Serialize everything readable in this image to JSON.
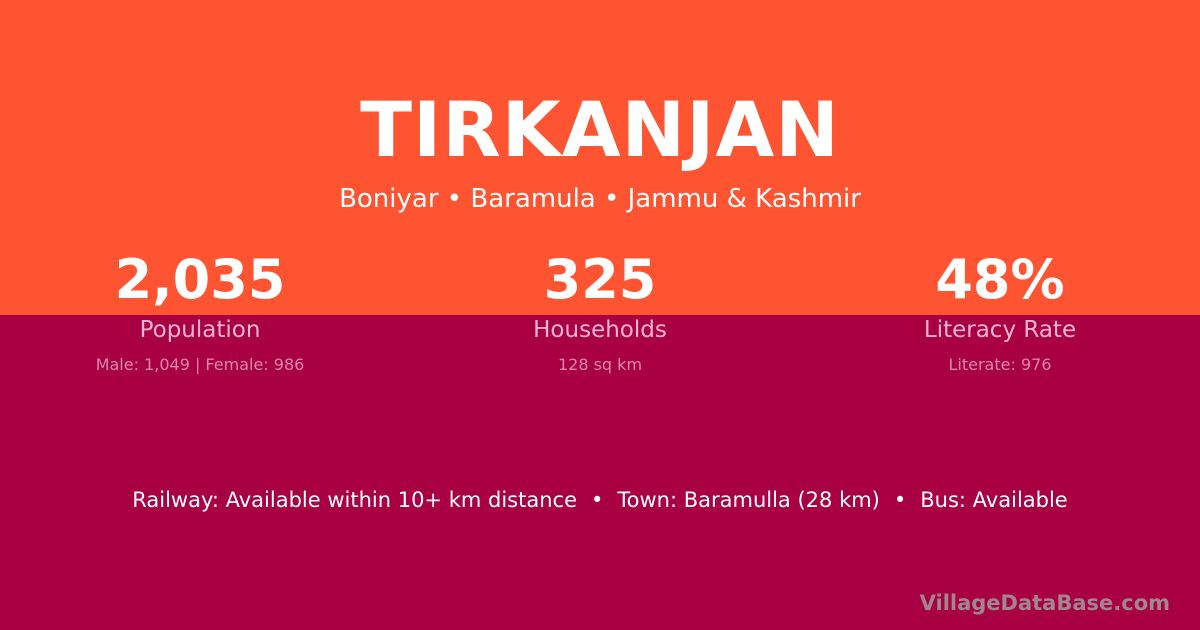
{
  "village": {
    "name": "TIRKANJAN",
    "location": "Boniyar • Baramula • Jammu & Kashmir"
  },
  "stats": [
    {
      "value": "2,035",
      "label": "Population",
      "detail": "Male: 1,049 | Female: 986"
    },
    {
      "value": "325",
      "label": "Households",
      "detail": "128 sq km"
    },
    {
      "value": "48%",
      "label": "Literacy Rate",
      "detail": "Literate: 976"
    }
  ],
  "facts": {
    "railway": "Railway: Available within 10+ km distance",
    "town": "Town: Baramulla (28 km)",
    "bus": "Bus: Available",
    "separator": "•"
  },
  "watermark": "VillageDataBase.com",
  "colors": {
    "top_band": "#FF5432",
    "bottom_band": "#A80043"
  }
}
